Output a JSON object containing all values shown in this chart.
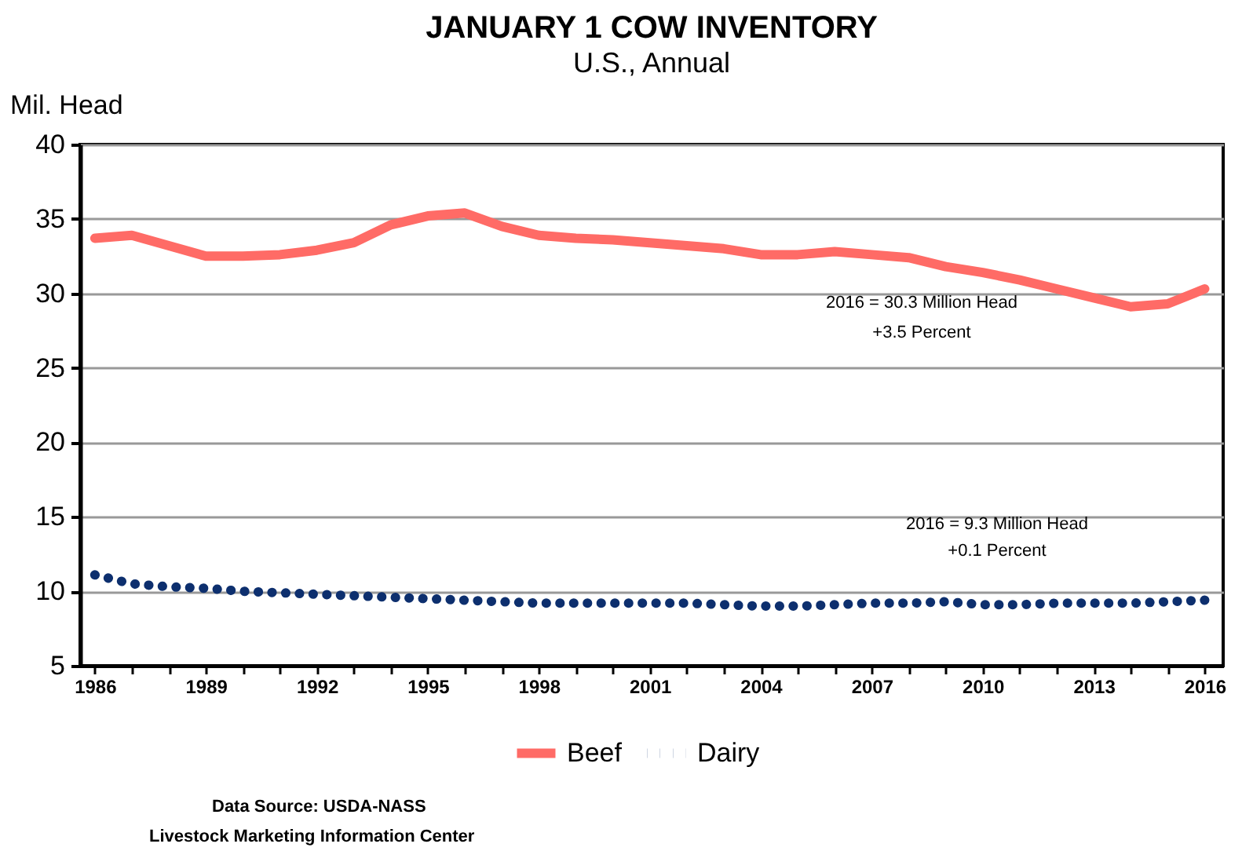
{
  "chart_data": {
    "type": "line",
    "title": "JANUARY 1  COW INVENTORY",
    "subtitle": "U.S., Annual",
    "ylabel": "Mil. Head",
    "x": [
      1986,
      1987,
      1988,
      1989,
      1990,
      1991,
      1992,
      1993,
      1994,
      1995,
      1996,
      1997,
      1998,
      1999,
      2000,
      2001,
      2002,
      2003,
      2004,
      2005,
      2006,
      2007,
      2008,
      2009,
      2010,
      2011,
      2012,
      2013,
      2014,
      2015,
      2016
    ],
    "series": [
      {
        "name": "Beef",
        "color": "#ff6b66",
        "line_style": "solid",
        "values": [
          33.7,
          33.9,
          33.2,
          32.5,
          32.5,
          32.6,
          32.9,
          33.4,
          34.6,
          35.2,
          35.4,
          34.5,
          33.9,
          33.7,
          33.6,
          33.4,
          33.2,
          33.0,
          32.6,
          32.6,
          32.8,
          32.6,
          32.4,
          31.8,
          31.4,
          30.9,
          30.3,
          29.7,
          29.1,
          29.3,
          30.3
        ]
      },
      {
        "name": "Dairy",
        "color": "#0d2f6e",
        "line_style": "dotted",
        "values": [
          11.1,
          10.5,
          10.3,
          10.2,
          10.0,
          9.9,
          9.8,
          9.7,
          9.6,
          9.5,
          9.4,
          9.3,
          9.2,
          9.2,
          9.2,
          9.2,
          9.2,
          9.1,
          9.0,
          9.0,
          9.1,
          9.2,
          9.2,
          9.3,
          9.1,
          9.1,
          9.2,
          9.2,
          9.2,
          9.3,
          9.4
        ]
      }
    ],
    "xlim": [
      1985.6,
      2016.5
    ],
    "xticks": [
      1986,
      {
        "value": 1987,
        "label": null
      },
      {
        "value": 1988,
        "label": null
      },
      1989,
      {
        "value": 1990,
        "label": null
      },
      {
        "value": 1991,
        "label": null
      },
      1992,
      {
        "value": 1993,
        "label": null
      },
      {
        "value": 1994,
        "label": null
      },
      1995,
      {
        "value": 1996,
        "label": null
      },
      {
        "value": 1997,
        "label": null
      },
      1998,
      {
        "value": 1999,
        "label": null
      },
      {
        "value": 2000,
        "label": null
      },
      2001,
      {
        "value": 2002,
        "label": null
      },
      {
        "value": 2003,
        "label": null
      },
      2004,
      {
        "value": 2005,
        "label": null
      },
      {
        "value": 2006,
        "label": null
      },
      2007,
      {
        "value": 2008,
        "label": null
      },
      {
        "value": 2009,
        "label": null
      },
      2010,
      {
        "value": 2011,
        "label": null
      },
      {
        "value": 2012,
        "label": null
      },
      2013,
      {
        "value": 2014,
        "label": null
      },
      {
        "value": 2015,
        "label": null
      },
      2016
    ],
    "ylim": [
      5,
      40
    ],
    "yticks": [
      5,
      10,
      15,
      20,
      25,
      30,
      35,
      40
    ],
    "grid": "y",
    "legend": "bottom",
    "marker": "none",
    "annotations": [
      "2016 = 30.3 Million Head",
      "+3.5 Percent",
      "2016 = 9.3 Million Head",
      "+0.1 Percent",
      "Data Source:  USDA-NASS",
      "Livestock Marketing Information Center"
    ]
  }
}
